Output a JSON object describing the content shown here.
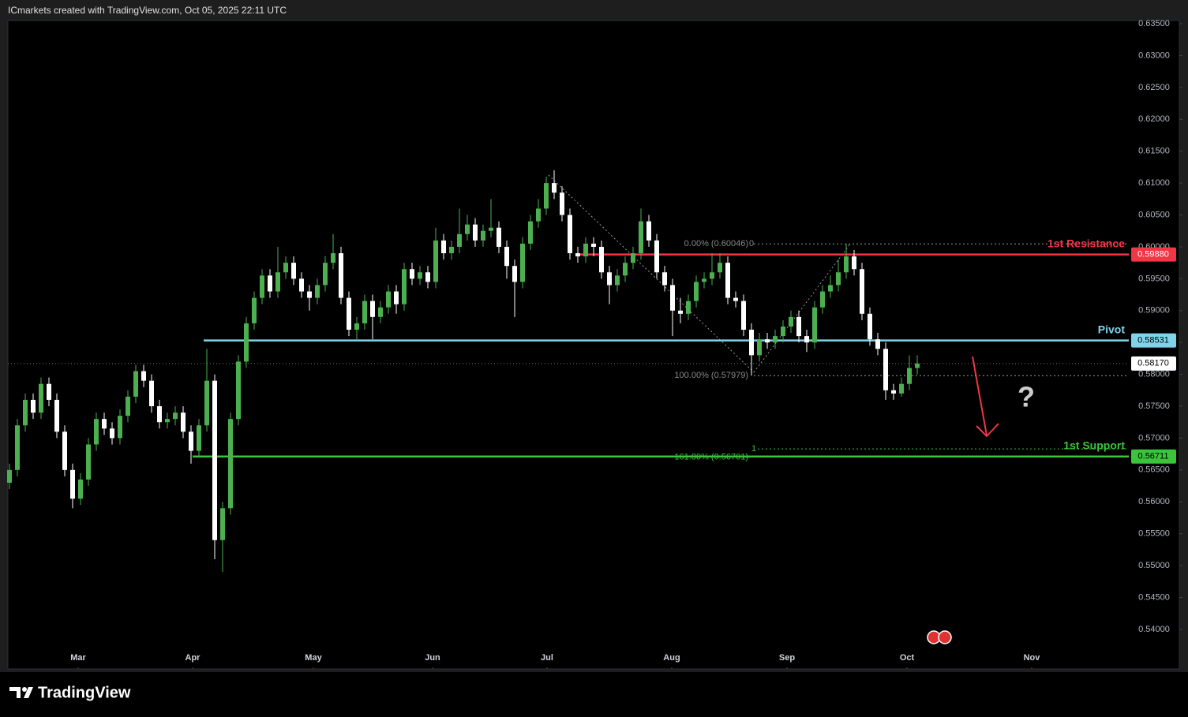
{
  "chart_data": {
    "type": "candlestick",
    "header": "ICmarkets created with TradingView.com, Oct 05, 2025 22:11 UTC",
    "brand": "TradingView",
    "question": "?",
    "up_color": "#4caf50",
    "down_color": "#ffffff",
    "open": [
      0.563,
      0.565,
      0.572,
      0.576,
      0.574,
      0.5785,
      0.576,
      0.571,
      0.565,
      0.5605,
      0.5635,
      0.569,
      0.573,
      0.5715,
      0.57,
      0.5735,
      0.5765,
      0.5805,
      0.579,
      0.575,
      0.5725,
      0.573,
      0.574,
      0.571,
      0.568,
      0.572,
      0.579,
      0.554,
      0.559,
      0.573,
      0.582,
      0.588,
      0.592,
      0.5955,
      0.593,
      0.596,
      0.5975,
      0.595,
      0.593,
      0.592,
      0.594,
      0.5975,
      0.599,
      0.592,
      0.587,
      0.588,
      0.5915,
      0.589,
      0.5905,
      0.593,
      0.591,
      0.5965,
      0.595,
      0.596,
      0.5945,
      0.601,
      0.599,
      0.6,
      0.602,
      0.6035,
      0.601,
      0.6025,
      0.603,
      0.6,
      0.597,
      0.5945,
      0.6005,
      0.604,
      0.606,
      0.61,
      0.6085,
      0.605,
      0.599,
      0.5985,
      0.6005,
      0.6,
      0.596,
      0.594,
      0.5955,
      0.5975,
      0.599,
      0.604,
      0.601,
      0.596,
      0.594,
      0.59,
      0.5895,
      0.5915,
      0.5945,
      0.595,
      0.596,
      0.5975,
      0.592,
      0.5915,
      0.587,
      0.583,
      0.5855,
      0.585,
      0.586,
      0.5875,
      0.589,
      0.586,
      0.585,
      0.5905,
      0.593,
      0.594,
      0.596,
      0.5985,
      0.5965,
      0.5895,
      0.5855,
      0.584,
      0.5775,
      0.577,
      0.5785,
      0.581
    ],
    "high": [
      0.566,
      0.573,
      0.577,
      0.577,
      0.5795,
      0.5795,
      0.577,
      0.572,
      0.566,
      0.5645,
      0.57,
      0.574,
      0.574,
      0.5725,
      0.5745,
      0.5775,
      0.5815,
      0.5815,
      0.58,
      0.576,
      0.574,
      0.575,
      0.575,
      0.572,
      0.573,
      0.584,
      0.58,
      0.56,
      0.574,
      0.583,
      0.589,
      0.593,
      0.5965,
      0.5965,
      0.6,
      0.5985,
      0.5985,
      0.596,
      0.594,
      0.595,
      0.5985,
      0.602,
      0.6,
      0.593,
      0.589,
      0.5925,
      0.5925,
      0.5915,
      0.594,
      0.594,
      0.5975,
      0.5975,
      0.597,
      0.597,
      0.603,
      0.602,
      0.601,
      0.606,
      0.605,
      0.6045,
      0.6035,
      0.6075,
      0.604,
      0.601,
      0.598,
      0.6015,
      0.605,
      0.6075,
      0.611,
      0.612,
      0.6095,
      0.606,
      0.6,
      0.6015,
      0.6015,
      0.601,
      0.597,
      0.5965,
      0.5985,
      0.6,
      0.606,
      0.605,
      0.602,
      0.597,
      0.595,
      0.592,
      0.5925,
      0.5955,
      0.596,
      0.599,
      0.599,
      0.5985,
      0.593,
      0.5925,
      0.588,
      0.5865,
      0.5865,
      0.587,
      0.5885,
      0.59,
      0.59,
      0.587,
      0.5915,
      0.594,
      0.5955,
      0.598,
      0.6005,
      0.5995,
      0.5975,
      0.5905,
      0.5865,
      0.585,
      0.5785,
      0.5795,
      0.583,
      0.583
    ],
    "low": [
      0.562,
      0.564,
      0.571,
      0.573,
      0.573,
      0.575,
      0.57,
      0.564,
      0.559,
      0.5595,
      0.5625,
      0.568,
      0.5705,
      0.569,
      0.569,
      0.5725,
      0.5755,
      0.578,
      0.574,
      0.5715,
      0.5715,
      0.572,
      0.57,
      0.566,
      0.567,
      0.571,
      0.551,
      0.549,
      0.558,
      0.572,
      0.581,
      0.587,
      0.591,
      0.592,
      0.592,
      0.595,
      0.594,
      0.592,
      0.59,
      0.591,
      0.593,
      0.5965,
      0.591,
      0.586,
      0.5855,
      0.587,
      0.5855,
      0.588,
      0.5895,
      0.5895,
      0.59,
      0.594,
      0.594,
      0.5935,
      0.5935,
      0.598,
      0.598,
      0.599,
      0.601,
      0.6,
      0.6,
      0.6015,
      0.599,
      0.595,
      0.589,
      0.5935,
      0.5995,
      0.603,
      0.605,
      0.6075,
      0.604,
      0.598,
      0.5975,
      0.5975,
      0.5985,
      0.595,
      0.591,
      0.593,
      0.5945,
      0.5965,
      0.598,
      0.6,
      0.595,
      0.593,
      0.586,
      0.588,
      0.5885,
      0.5905,
      0.5935,
      0.594,
      0.595,
      0.591,
      0.5905,
      0.586,
      0.5798,
      0.582,
      0.584,
      0.584,
      0.585,
      0.5865,
      0.585,
      0.5835,
      0.584,
      0.5895,
      0.592,
      0.593,
      0.595,
      0.5955,
      0.5885,
      0.5845,
      0.583,
      0.576,
      0.576,
      0.5765,
      0.5775,
      0.58
    ],
    "close": [
      0.565,
      0.572,
      0.576,
      0.574,
      0.5785,
      0.576,
      0.571,
      0.565,
      0.5605,
      0.5635,
      0.569,
      0.573,
      0.5715,
      0.57,
      0.5735,
      0.5765,
      0.5805,
      0.579,
      0.575,
      0.5725,
      0.573,
      0.574,
      0.571,
      0.568,
      0.572,
      0.579,
      0.554,
      0.559,
      0.573,
      0.582,
      0.588,
      0.592,
      0.5955,
      0.593,
      0.596,
      0.5975,
      0.595,
      0.593,
      0.592,
      0.594,
      0.5975,
      0.599,
      0.592,
      0.587,
      0.588,
      0.5915,
      0.589,
      0.5905,
      0.593,
      0.591,
      0.5965,
      0.595,
      0.596,
      0.5945,
      0.601,
      0.599,
      0.6,
      0.602,
      0.6035,
      0.601,
      0.6025,
      0.603,
      0.6,
      0.597,
      0.5945,
      0.6005,
      0.604,
      0.606,
      0.61,
      0.6085,
      0.605,
      0.599,
      0.5985,
      0.6005,
      0.6,
      0.596,
      0.594,
      0.5955,
      0.5975,
      0.599,
      0.604,
      0.601,
      0.596,
      0.594,
      0.59,
      0.5895,
      0.5915,
      0.5945,
      0.595,
      0.596,
      0.5975,
      0.592,
      0.5915,
      0.587,
      0.583,
      0.5855,
      0.585,
      0.586,
      0.5875,
      0.589,
      0.586,
      0.585,
      0.5905,
      0.593,
      0.594,
      0.596,
      0.5985,
      0.5965,
      0.5895,
      0.5855,
      0.584,
      0.5775,
      0.577,
      0.5785,
      0.581,
      0.5817
    ],
    "xlim": [
      -0.2,
      141.8
    ],
    "xticks": [
      {
        "value": 8.7,
        "label": "Mar"
      },
      {
        "value": 23.2,
        "label": "Apr"
      },
      {
        "value": 38.5,
        "label": "May"
      },
      {
        "value": 53.6,
        "label": "Jun"
      },
      {
        "value": 68.1,
        "label": "Jul"
      },
      {
        "value": 83.9,
        "label": "Aug"
      },
      {
        "value": 98.5,
        "label": "Sep"
      },
      {
        "value": 113.7,
        "label": "Oct"
      },
      {
        "value": 129.5,
        "label": "Nov"
      }
    ],
    "ylim": [
      0.5338,
      0.6355
    ],
    "yticks": [
      {
        "value": 0.54,
        "label": "0.54000"
      },
      {
        "value": 0.545,
        "label": "0.54500"
      },
      {
        "value": 0.55,
        "label": "0.55000"
      },
      {
        "value": 0.555,
        "label": "0.55500"
      },
      {
        "value": 0.56,
        "label": "0.56000"
      },
      {
        "value": 0.565,
        "label": "0.56500"
      },
      {
        "value": 0.57,
        "label": "0.57000"
      },
      {
        "value": 0.575,
        "label": "0.57500"
      },
      {
        "value": 0.58,
        "label": "0.58000"
      },
      {
        "value": 0.585,
        "label": "0.58500"
      },
      {
        "value": 0.59,
        "label": "0.59000"
      },
      {
        "value": 0.595,
        "label": "0.59500"
      },
      {
        "value": 0.6,
        "label": "0.60000"
      },
      {
        "value": 0.605,
        "label": "0.60500"
      },
      {
        "value": 0.61,
        "label": "0.61000"
      },
      {
        "value": 0.615,
        "label": "0.61500"
      },
      {
        "value": 0.62,
        "label": "0.62000"
      },
      {
        "value": 0.625,
        "label": "0.62500"
      },
      {
        "value": 0.63,
        "label": "0.63000"
      },
      {
        "value": 0.635,
        "label": "0.63500"
      }
    ],
    "levels": [
      {
        "name": "1st Resistance",
        "value": 0.5988,
        "label": "0.59880",
        "color": "#f23645"
      },
      {
        "name": "Pivot",
        "value": 0.58531,
        "label": "0.58531",
        "color": "#7fd4ea"
      },
      {
        "name": "1st Support",
        "value": 0.56711,
        "label": "0.56711",
        "color": "#3bc43b"
      }
    ],
    "last_price": {
      "value": 0.5817,
      "label": "0.58170"
    },
    "fib_levels": [
      {
        "value": 0.60046,
        "label": "0.00% (0.60046)"
      },
      {
        "value": 0.57979,
        "label": "100.00% (0.57979)"
      },
      {
        "value": 0.56701,
        "label": "161.80% (0.56701)"
      }
    ],
    "fib_marks": [
      {
        "value": 0.60046,
        "label": "0"
      },
      {
        "value": 0.5683,
        "label": "1"
      }
    ]
  }
}
